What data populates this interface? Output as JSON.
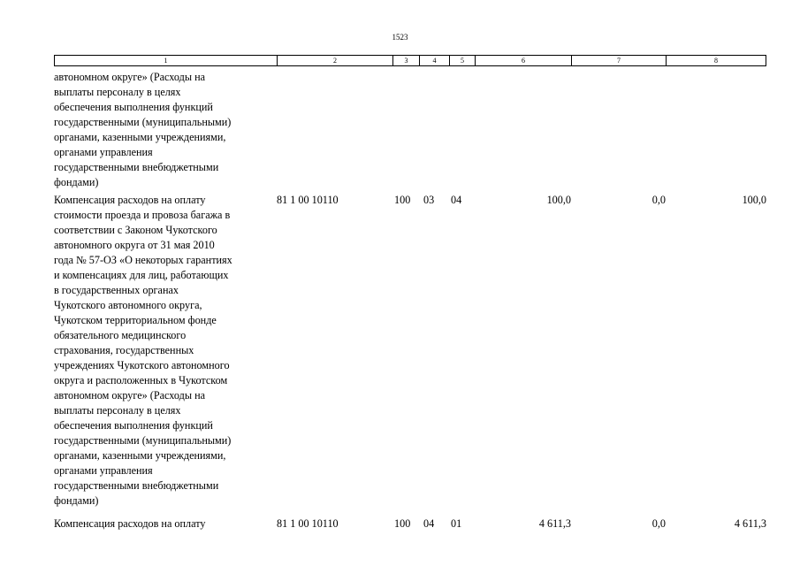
{
  "page_number": "1523",
  "header": [
    "1",
    "2",
    "3",
    "4",
    "5",
    "6",
    "7",
    "8"
  ],
  "rows": [
    {
      "description": "автономном округе» (Расходы на\nвыплаты персоналу в целях\nобеспечения выполнения функций\nгосударственными (муниципальными)\nорганами, казенными учреждениями,\nорганами управления\nгосударственными внебюджетными\nфондами)"
    },
    {
      "description": "Компенсация расходов на оплату\nстоимости проезда и провоза багажа в\nсоответствии с Законом Чукотского\nавтономного округа от 31 мая 2010\nгода № 57-ОЗ «О некоторых гарантиях\nи компенсациях для лиц, работающих\nв государственных органах\nЧукотского автономного округа,\nЧукотском территориальном фонде\nобязательного медицинского\nстрахования, государственных\nучреждениях Чукотского автономного\nокруга и расположенных в Чукотском\nавтономном округе» (Расходы на\nвыплаты персоналу в целях\nобеспечения выполнения функций\nгосударственными (муниципальными)\nорганами, казенными учреждениями,\nорганами управления\nгосударственными внебюджетными\nфондами)",
      "code": "81 1 00 10110",
      "c3": "100",
      "c4": "03",
      "c5": "04",
      "c6": "100,0",
      "c7": "0,0",
      "c8": "100,0"
    },
    {
      "description": "Компенсация расходов на оплату",
      "code": "81 1 00 10110",
      "c3": "100",
      "c4": "04",
      "c5": "01",
      "c6": "4 611,3",
      "c7": "0,0",
      "c8": "4 611,3"
    }
  ]
}
